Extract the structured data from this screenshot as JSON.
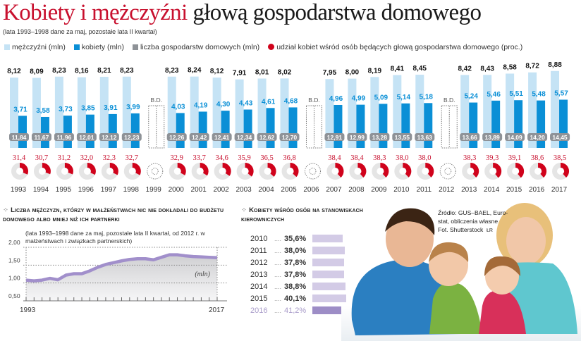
{
  "title": {
    "part1": "Kobiety i mężczyźni",
    "part2": "głową gospodarstwa domowego"
  },
  "subtitle": "(lata 1993–1998 dane za maj, pozostałe lata II kwartał)",
  "legend": {
    "men": "mężczyźni (mln)",
    "women": "kobiety (mln)",
    "households": "liczba gospodarstw domowych (mln)",
    "share": "udział kobiet wśród osób będących głową gospodarstwa domowego (proc.)"
  },
  "colors": {
    "men": "#c5e3f5",
    "women": "#0a8fd6",
    "households": "#8e9297",
    "share": "#d0021b",
    "title_red": "#c8102e",
    "line": "#a18fcb"
  },
  "chart_data": [
    {
      "type": "bar",
      "no_data_label": "B.D.",
      "categories": [
        "1993",
        "1994",
        "1995",
        "1996",
        "1997",
        "1998",
        "1999",
        "2000",
        "2001",
        "2002",
        "2003",
        "2004",
        "2005",
        "2006",
        "2007",
        "2008",
        "2009",
        "2010",
        "2011",
        "2012",
        "2013",
        "2014",
        "2015",
        "2016",
        "2017"
      ],
      "series": [
        {
          "name": "mężczyźni (mln)",
          "values": [
            8.12,
            8.09,
            8.23,
            8.16,
            8.21,
            8.23,
            null,
            8.23,
            8.24,
            8.12,
            7.91,
            8.01,
            8.02,
            null,
            7.95,
            8.0,
            8.19,
            8.41,
            8.45,
            null,
            8.42,
            8.43,
            8.58,
            8.72,
            8.88
          ],
          "labels": [
            "8,12",
            "8,09",
            "8,23",
            "8,16",
            "8,21",
            "8,23",
            null,
            "8,23",
            "8,24",
            "8,12",
            "7,91",
            "8,01",
            "8,02",
            null,
            "7,95",
            "8,00",
            "8,19",
            "8,41",
            "8,45",
            null,
            "8,42",
            "8,43",
            "8,58",
            "8,72",
            "8,88"
          ]
        },
        {
          "name": "kobiety (mln)",
          "values": [
            3.71,
            3.58,
            3.73,
            3.85,
            3.91,
            3.99,
            null,
            4.03,
            4.19,
            4.3,
            4.43,
            4.61,
            4.68,
            null,
            4.96,
            4.99,
            5.09,
            5.14,
            5.18,
            null,
            5.24,
            5.46,
            5.51,
            5.48,
            5.57
          ],
          "labels": [
            "3,71",
            "3,58",
            "3,73",
            "3,85",
            "3,91",
            "3,99",
            null,
            "4,03",
            "4,19",
            "4,30",
            "4,43",
            "4,61",
            "4,68",
            null,
            "4,96",
            "4,99",
            "5,09",
            "5,14",
            "5,18",
            null,
            "5,24",
            "5,46",
            "5,51",
            "5,48",
            "5,57"
          ]
        },
        {
          "name": "liczba gospodarstw domowych (mln)",
          "values": [
            11.84,
            11.67,
            11.96,
            12.01,
            12.12,
            12.23,
            null,
            12.26,
            12.42,
            12.41,
            12.34,
            12.62,
            12.7,
            null,
            12.91,
            12.99,
            13.28,
            13.55,
            13.63,
            null,
            13.66,
            13.89,
            14.09,
            14.2,
            14.45
          ],
          "labels": [
            "11,84",
            "11,67",
            "11,96",
            "12,01",
            "12,12",
            "12,23",
            null,
            "12,26",
            "12,42",
            "12,41",
            "12,34",
            "12,62",
            "12,70",
            null,
            "12,91",
            "12,99",
            "13,28",
            "13,55",
            "13,63",
            null,
            "13,66",
            "13,89",
            "14,09",
            "14,20",
            "14,45"
          ]
        },
        {
          "name": "udział kobiet wśród osób będących głową gospodarstwa domowego (proc.)",
          "values": [
            31.4,
            30.7,
            31.2,
            32.0,
            32.3,
            32.7,
            null,
            32.9,
            33.7,
            34.6,
            35.9,
            36.5,
            36.8,
            null,
            38.4,
            38.4,
            38.3,
            38.0,
            38.0,
            null,
            38.3,
            39.3,
            39.1,
            38.6,
            38.5
          ],
          "labels": [
            "31,4",
            "30,7",
            "31,2",
            "32,0",
            "32,3",
            "32,7",
            null,
            "32,9",
            "33,7",
            "34,6",
            "35,9",
            "36,5",
            "36,8",
            null,
            "38,4",
            "38,4",
            "38,3",
            "38,0",
            "38,0",
            null,
            "38,3",
            "39,3",
            "39,1",
            "38,6",
            "38,5"
          ]
        }
      ]
    },
    {
      "type": "area",
      "title": "Liczba mężczyzn, którzy w małżeństwach nic nie dokładali do budżetu domowego albo mniej niż ich partnerki",
      "note": "(lata 1993–1998 dane za maj,  pozostałe lata II kwartał, od 2012 r. w małżeństwach i związkach partnerskich)",
      "unit_label": "(mln)",
      "x": [
        1993,
        1994,
        1995,
        1996,
        1997,
        1998,
        1999,
        2000,
        2001,
        2002,
        2003,
        2004,
        2005,
        2006,
        2007,
        2008,
        2009,
        2010,
        2011,
        2012,
        2013,
        2014,
        2015,
        2016,
        2017
      ],
      "values": [
        1.08,
        1.06,
        1.08,
        1.13,
        1.09,
        1.22,
        1.26,
        1.26,
        1.34,
        1.44,
        1.52,
        1.57,
        1.62,
        1.66,
        1.68,
        1.68,
        1.65,
        1.72,
        1.79,
        1.79,
        1.76,
        1.74,
        1.73,
        1.72,
        1.71
      ],
      "x_tick_labels": [
        "1993",
        "2017"
      ],
      "y_tick_labels": [
        "2,00",
        "1,50",
        "1,00",
        "0,50"
      ],
      "y_ticks": [
        2.0,
        1.5,
        1.0,
        0.5
      ],
      "ylim": [
        0.5,
        2.0
      ],
      "grid": true
    },
    {
      "type": "bar",
      "title": "Kobiety wśród osób na stanowiskach kierowniczych",
      "categories": [
        "2010",
        "2011",
        "2012",
        "2013",
        "2014",
        "2015",
        "2016"
      ],
      "values": [
        35.6,
        38.0,
        37.8,
        37.8,
        38.8,
        40.1,
        41.2
      ],
      "labels": [
        "35,6%",
        "38,0%",
        "37,8%",
        "37,8%",
        "38,8%",
        "40,1%",
        "41,2%"
      ]
    }
  ],
  "source": {
    "line1": "Źródło: GUS–BAEL, Euro-",
    "line2": "stat, obliczenia własne",
    "line3": "Fot. Shutterstock",
    "initials": "ŁR"
  }
}
